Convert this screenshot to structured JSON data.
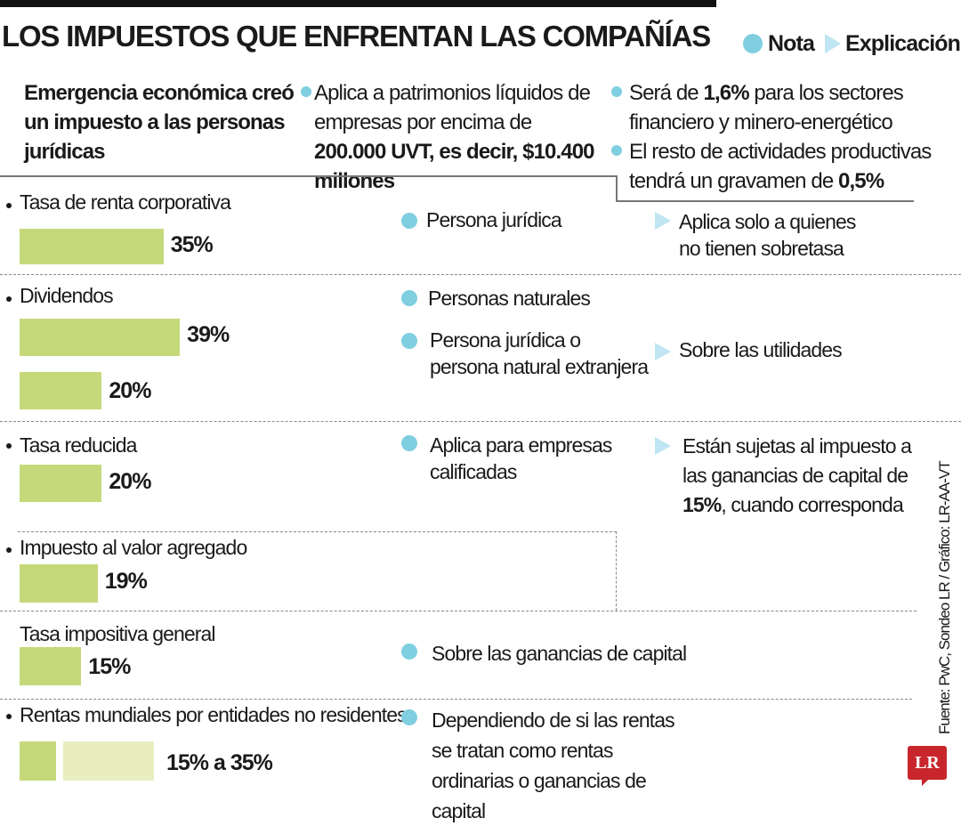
{
  "title": "LOS IMPUESTOS QUE ENFRENTAN LAS COMPAÑÍAS",
  "legend": {
    "nota": "Nota",
    "explicacion": "Explicación",
    "colors": {
      "nota": "#7fcfe0",
      "explicacion": "#bfe6f2"
    }
  },
  "intro": {
    "heading": "Emergencia económica creó un impuesto a las personas jurídicas",
    "note1": {
      "pre": "Aplica a patrimonios líquidos de empresas por encima de ",
      "bold": "200.000 UVT, es decir, $10.400 millones"
    },
    "note2": {
      "pre": "Será de ",
      "bold": "1,6%",
      "post": " para los sectores financiero y minero-energético"
    },
    "note3": {
      "pre": "El resto de actividades productivas tendrá un gravamen de ",
      "bold": "0,5%"
    }
  },
  "chart_data": {
    "type": "bar",
    "orientation": "horizontal",
    "colors": {
      "bar": "#c5d97a",
      "bar_light": "#e8eec0"
    },
    "rows": [
      {
        "category": "Tasa de renta corporativa",
        "bars": [
          {
            "value": 35,
            "label": "35%"
          }
        ],
        "notes": [
          "Persona jurídica"
        ],
        "explanation": "Aplica solo a quienes no tienen sobretasa"
      },
      {
        "category": "Dividendos",
        "bars": [
          {
            "value": 39,
            "label": "39%"
          },
          {
            "value": 20,
            "label": "20%"
          }
        ],
        "notes": [
          "Personas naturales",
          "Persona jurídica o persona natural extranjera"
        ],
        "explanation": "Sobre las utilidades"
      },
      {
        "category": "Tasa reducida",
        "bars": [
          {
            "value": 20,
            "label": "20%"
          }
        ],
        "notes": [
          "Aplica para empresas calificadas"
        ],
        "explanation": {
          "pre": "Están sujetas al impuesto a las ganancias de capital de ",
          "bold": "15%",
          "post": ", cuando corresponda"
        }
      },
      {
        "category": "Impuesto al valor agregado",
        "bars": [
          {
            "value": 19,
            "label": "19%"
          }
        ]
      },
      {
        "category": "Tasa impositiva general",
        "bars": [
          {
            "value": 15,
            "label": "15%"
          }
        ],
        "notes": [
          "Sobre las ganancias de capital"
        ]
      },
      {
        "category": "Rentas mundiales por entidades no residentes",
        "range": [
          15,
          35
        ],
        "label": "15% a 35%",
        "notes": [
          "Dependiendo de si las rentas se tratan como rentas ordinarias o ganancias de capital"
        ]
      }
    ]
  },
  "source": "Fuente: PwC, Sondeo LR / Gráfico: LR-AA-VT",
  "logo": "LR"
}
